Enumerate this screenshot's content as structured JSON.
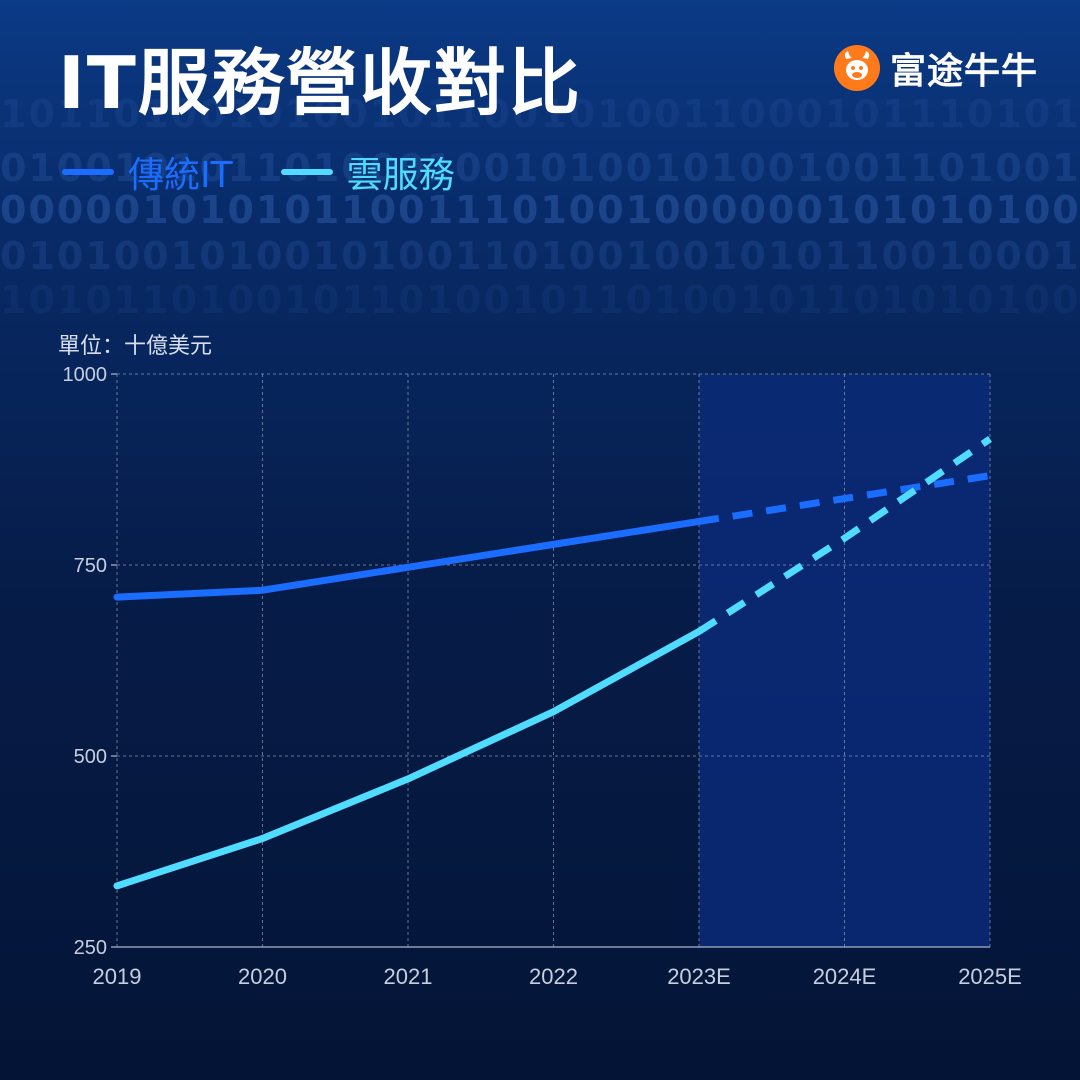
{
  "title": "IT服務營收對比",
  "brand": {
    "name": "富途牛牛",
    "icon": "futubull-logo-icon",
    "color": "#ff7a1a"
  },
  "unit_label": "單位：十億美元",
  "background_binary": [
    "10110100101001011001010011000101110101001010010011",
    "01001010110100010010100101001001101001110101000010",
    "00000101010110011101001000000101010100111010100101",
    "01010010100101001101001001010110010001010100101001",
    "10101101001011010010110100101101010100110010110101"
  ],
  "colors": {
    "traditional_it": "#1a6dff",
    "cloud": "#4fdcff",
    "forecast_band": "#0a2a78",
    "grid": "#8f9bb8",
    "axis_text": "#c7cfdf"
  },
  "chart_data": {
    "type": "line",
    "categories": [
      "2019",
      "2020",
      "2021",
      "2022",
      "2023E",
      "2024E",
      "2025E"
    ],
    "ylim": [
      250,
      1000
    ],
    "yticks": [
      "250",
      "500",
      "750",
      "1000"
    ],
    "ytick_values": [
      250,
      500,
      750,
      1000
    ],
    "grid": true,
    "forecast_start": "2023E",
    "legend": "top-left",
    "series": [
      {
        "name": "傳統IT",
        "values": [
          708,
          717,
          747,
          777,
          807,
          837,
          867
        ]
      },
      {
        "name": "雲服務",
        "values": [
          330,
          392,
          470,
          558,
          663,
          785,
          915
        ]
      }
    ]
  }
}
